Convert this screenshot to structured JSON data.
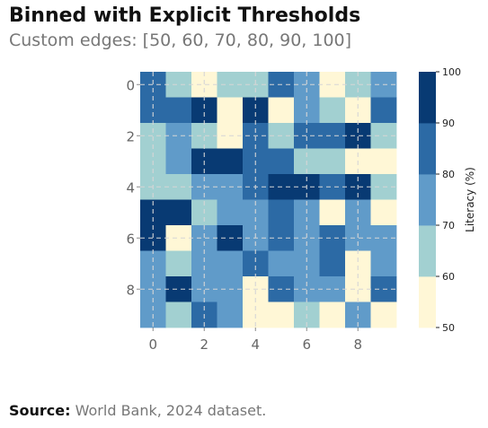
{
  "title": "Binned with Explicit Thresholds",
  "subtitle": "Custom edges: [50, 60, 70, 80, 90, 100]",
  "source_label": "Source:",
  "source_text": "World Bank, 2024 dataset.",
  "colors": {
    "bins": [
      "#fff7d6",
      "#a2d0d1",
      "#609bc9",
      "#2c6aa5",
      "#083a73"
    ],
    "grid": "#d6d6d6"
  },
  "chart_data": {
    "type": "heatmap",
    "title": "Binned with Explicit Thresholds",
    "subtitle": "Custom edges: [50, 60, 70, 80, 90, 100]",
    "rows": 10,
    "cols": 10,
    "x_ticks": [
      0,
      2,
      4,
      6,
      8
    ],
    "y_ticks": [
      0,
      2,
      4,
      6,
      8
    ],
    "thresholds": [
      50,
      60,
      70,
      80,
      90,
      100
    ],
    "colorbar": {
      "label": "Literacy (%)",
      "ticks": [
        50,
        60,
        70,
        80,
        90,
        100
      ]
    },
    "grid": true,
    "bin_values": [
      [
        3,
        1,
        0,
        1,
        1,
        3,
        2,
        0,
        1,
        2
      ],
      [
        3,
        3,
        4,
        0,
        4,
        0,
        2,
        1,
        0,
        3
      ],
      [
        1,
        2,
        1,
        0,
        3,
        1,
        3,
        3,
        4,
        1
      ],
      [
        1,
        2,
        4,
        4,
        3,
        3,
        1,
        1,
        0,
        0
      ],
      [
        1,
        1,
        2,
        2,
        3,
        4,
        4,
        3,
        4,
        1
      ],
      [
        4,
        4,
        1,
        2,
        2,
        3,
        2,
        0,
        2,
        0
      ],
      [
        4,
        0,
        2,
        4,
        2,
        3,
        2,
        3,
        2,
        2
      ],
      [
        2,
        1,
        2,
        2,
        3,
        2,
        2,
        3,
        0,
        2
      ],
      [
        2,
        4,
        2,
        2,
        0,
        3,
        2,
        2,
        0,
        3
      ],
      [
        2,
        1,
        3,
        2,
        0,
        0,
        1,
        0,
        2,
        0
      ]
    ]
  }
}
